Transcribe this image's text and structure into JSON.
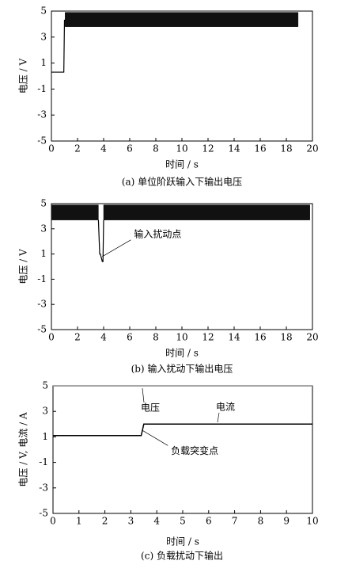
{
  "chart_data": [
    {
      "type": "line",
      "caption": "(a)  单位阶跃输入下输出电压",
      "xlabel": "时间 / s",
      "ylabel": "电压 / V",
      "xlim": [
        0,
        20
      ],
      "xticks": [
        0,
        2,
        4,
        6,
        8,
        10,
        12,
        14,
        16,
        18,
        20
      ],
      "ylim": [
        -5,
        5
      ],
      "yticks": [
        -5,
        -3,
        -1,
        1,
        3,
        5
      ],
      "color": "#000000",
      "x": [
        0,
        0.95,
        1.0,
        1.05
      ],
      "values": [
        0.3,
        0.3,
        4.3,
        4.3
      ],
      "band": {
        "x": [
          1.05,
          18.9
        ],
        "low": [
          3.8,
          3.8
        ],
        "high": [
          4.9,
          4.9
        ]
      }
    },
    {
      "type": "line",
      "caption": "(b)  输入扰动下输出电压",
      "xlabel": "时间 / s",
      "ylabel": "电压 / V",
      "xlim": [
        0,
        20
      ],
      "xticks": [
        0,
        2,
        4,
        6,
        8,
        10,
        12,
        14,
        16,
        18,
        20
      ],
      "ylim": [
        -5,
        5
      ],
      "yticks": [
        -5,
        -3,
        -1,
        1,
        3,
        5
      ],
      "color": "#000000",
      "x": [
        3.6,
        3.7,
        3.75,
        3.9,
        3.95,
        4.0
      ],
      "values": [
        3.7,
        1.0,
        1.0,
        0.4,
        0.4,
        3.7
      ],
      "band": {
        "x": [
          0,
          3.6,
          null,
          4.0,
          19.8
        ],
        "low": [
          3.7,
          3.7,
          null,
          3.7,
          3.7
        ],
        "high": [
          4.9,
          4.9,
          null,
          4.9,
          4.9
        ]
      },
      "annotations": [
        {
          "text": "输入扰动点",
          "x": 3.9,
          "y": 0.8
        }
      ]
    },
    {
      "type": "line",
      "caption": "(c)  负载扰动下输出",
      "xlabel": "时间 / s",
      "ylabel": "电压 / V, 电流 / A",
      "xlim": [
        0,
        10
      ],
      "xticks": [
        0,
        1,
        2,
        3,
        4,
        5,
        6,
        7,
        8,
        9,
        10
      ],
      "ylim": [
        -5,
        5
      ],
      "yticks": [
        -5,
        -3,
        -1,
        1,
        3,
        5
      ],
      "series": [
        {
          "name": "电压",
          "color": "#888888",
          "x": [
            0,
            10
          ],
          "values": [
            5,
            5
          ]
        },
        {
          "name": "电流",
          "color": "#000000",
          "x": [
            0,
            3.4,
            3.5,
            10
          ],
          "values": [
            1.1,
            1.1,
            2.0,
            2.0
          ]
        }
      ],
      "annotations": [
        {
          "text": "负载突变点",
          "x": 3.45,
          "y": 1.5
        }
      ]
    }
  ]
}
